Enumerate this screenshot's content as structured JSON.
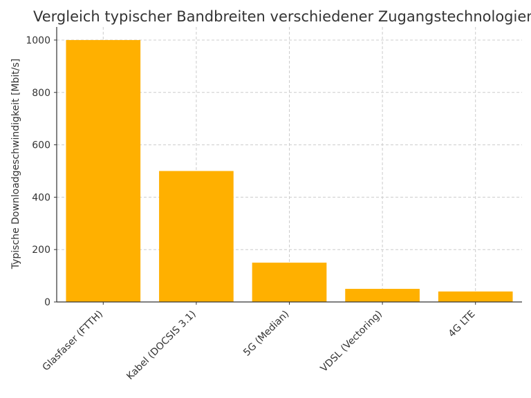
{
  "chart_data": {
    "type": "bar",
    "title": "Vergleich typischer Bandbreiten verschiedener Zugangstechnologien",
    "xlabel": "",
    "ylabel": "Typische Downloadgeschwindigkeit [Mbit/s]",
    "categories": [
      "Glasfaser (FTTH)",
      "Kabel (DOCSIS 3.1)",
      "5G (Median)",
      "VDSL (Vectoring)",
      "4G LTE"
    ],
    "values": [
      1000,
      500,
      150,
      50,
      40
    ],
    "ylim": [
      0,
      1050
    ],
    "yticks": [
      0,
      200,
      400,
      600,
      800,
      1000
    ],
    "grid": true,
    "bar_color": "#FFB000",
    "text_color": "#333333",
    "grid_color": "#CCCCCC"
  }
}
